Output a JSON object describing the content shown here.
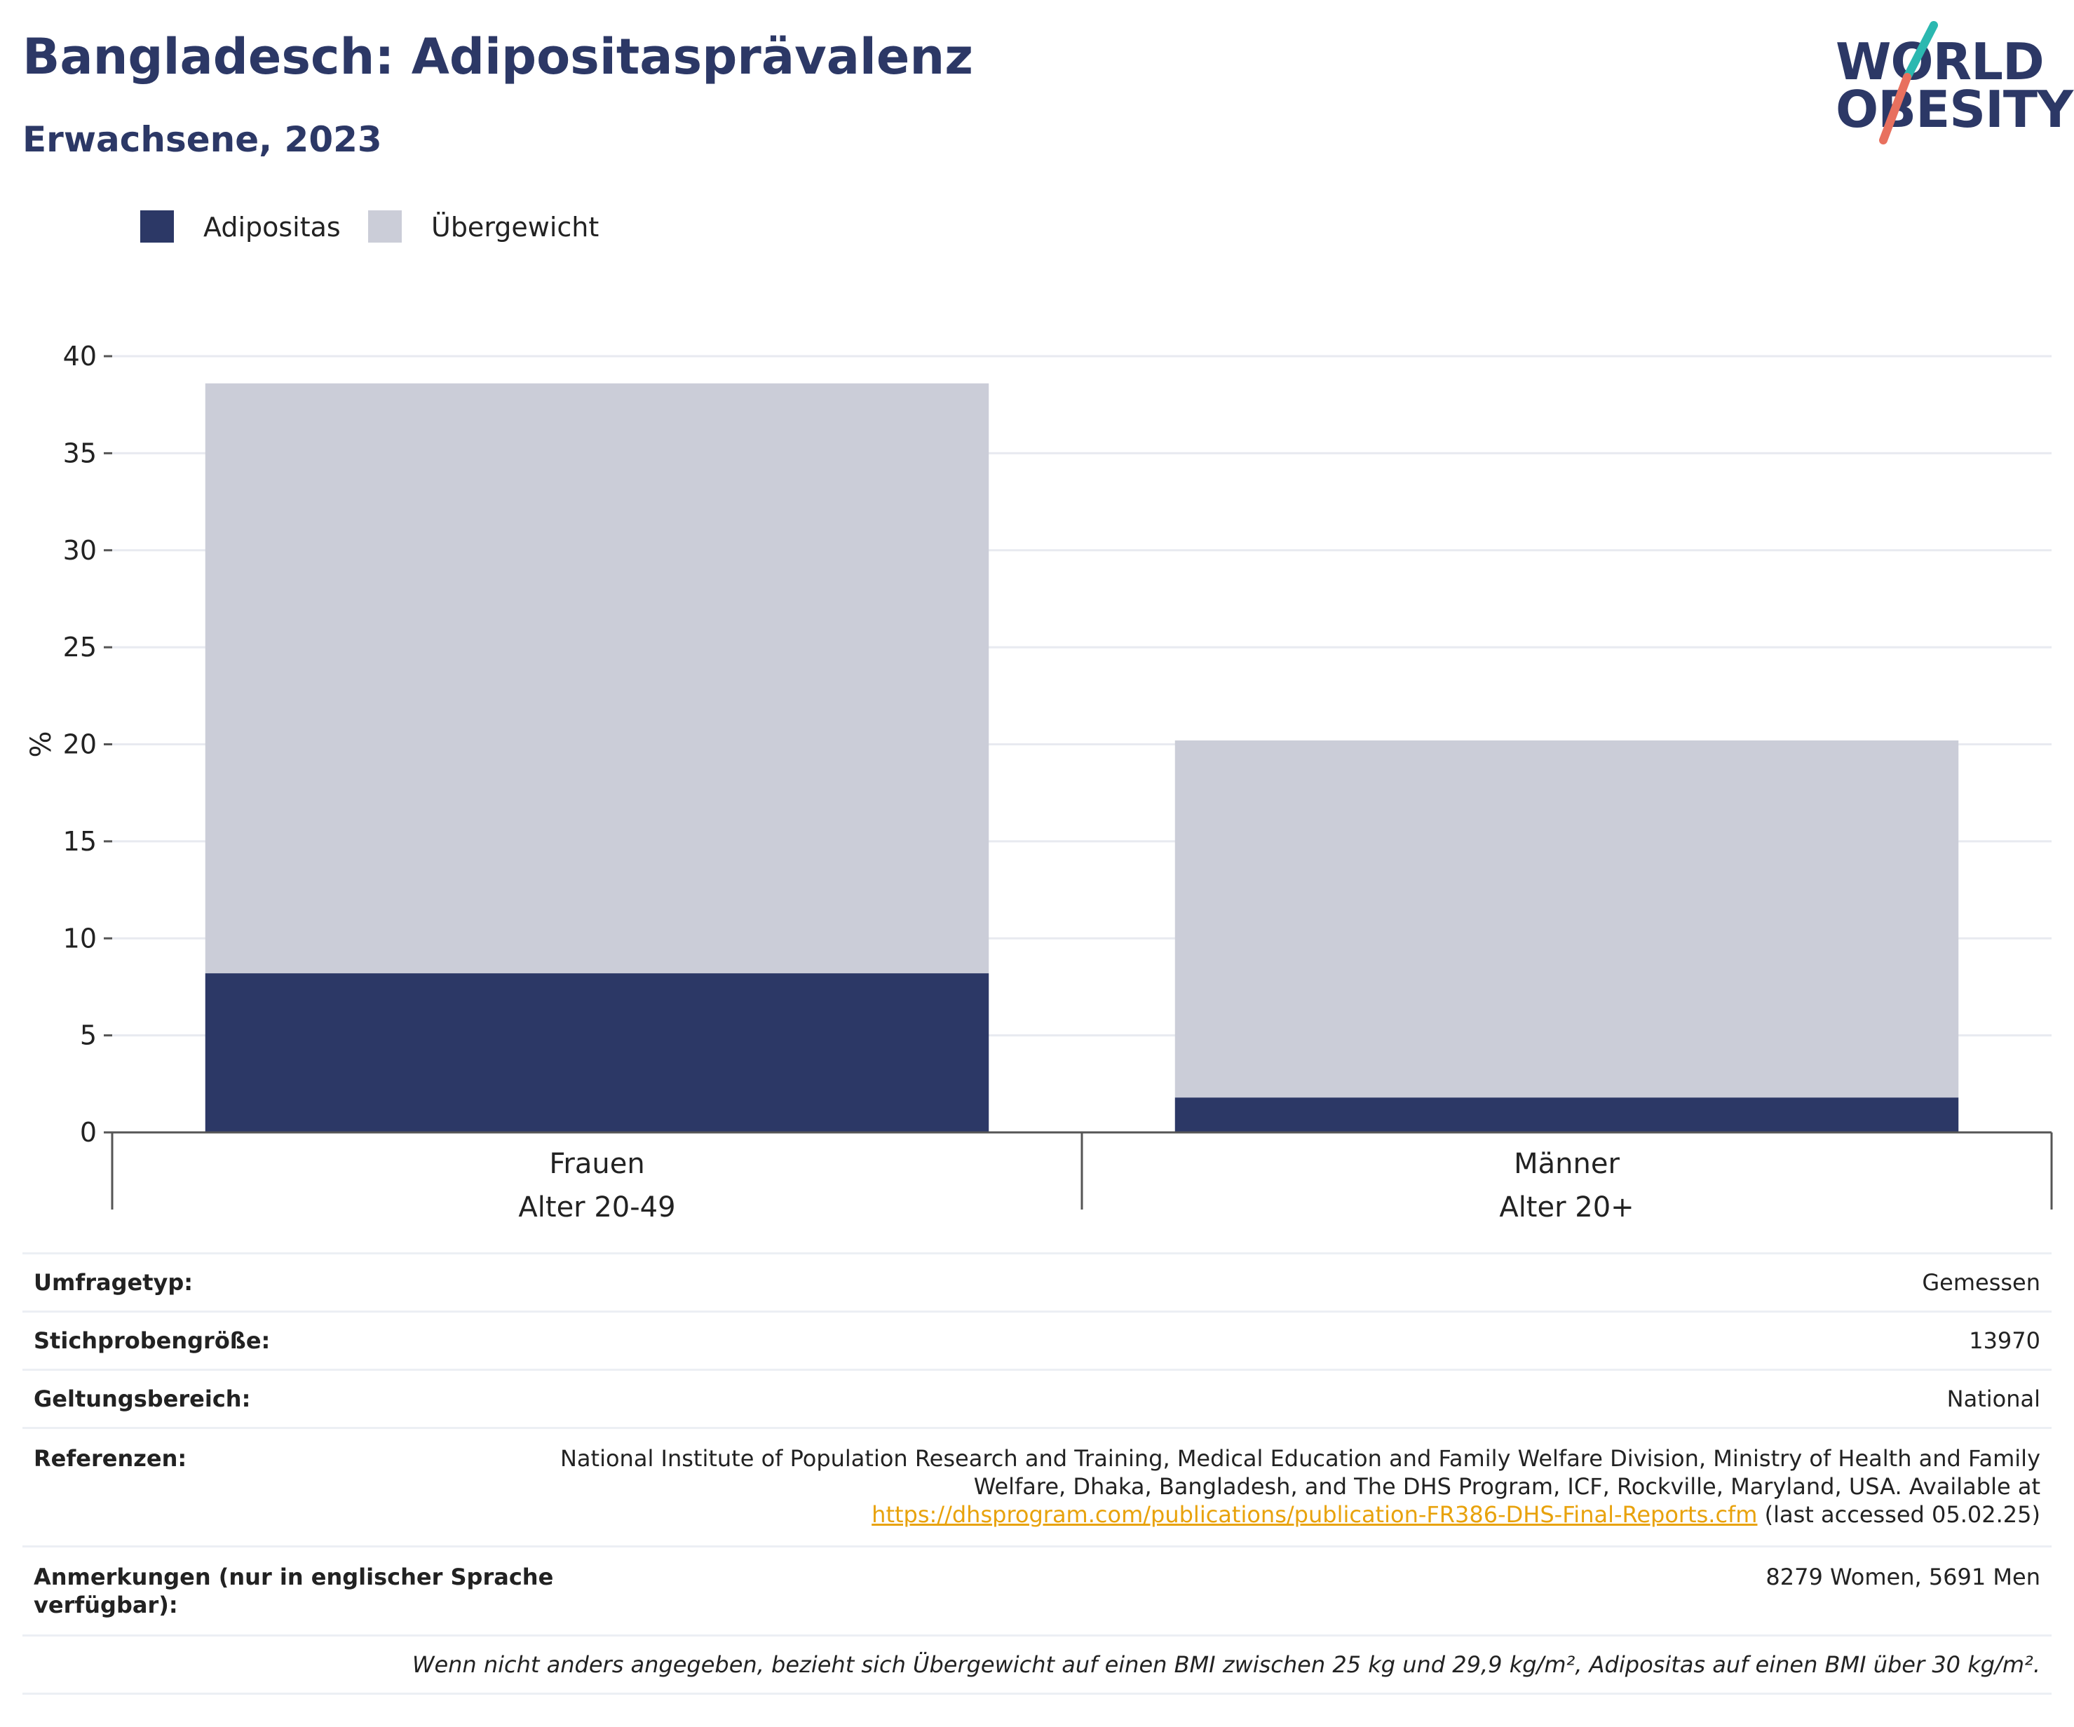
{
  "header": {
    "title": "Bangladesch: Adipositasprävalenz",
    "subtitle": "Erwachsene, 2023",
    "logo_line1": "WORLD",
    "logo_line2": "OBESITY"
  },
  "colors": {
    "obesity": "#2c3866",
    "overweight": "#cbcdd8",
    "grid": "#e8eaf0",
    "title": "#2c3866",
    "link": "#e8a20c",
    "logo_teal": "#2bb8b0",
    "logo_coral": "#e8705e"
  },
  "chart_data": {
    "type": "bar",
    "stacked": true,
    "categories": [
      [
        "Frauen",
        "Alter 20-49"
      ],
      [
        "Männer",
        "Alter 20+"
      ]
    ],
    "series": [
      {
        "name": "Adipositas",
        "values": [
          8.2,
          1.8
        ]
      },
      {
        "name": "Übergewicht",
        "values": [
          30.4,
          18.4
        ]
      }
    ],
    "ylabel": "%",
    "ylim": [
      0,
      40
    ],
    "yticks": [
      0,
      5,
      10,
      15,
      20,
      25,
      30,
      35,
      40
    ],
    "grid": true,
    "legend_position": "top-left"
  },
  "info": {
    "survey_type_label": "Umfragetyp:",
    "survey_type_value": "Gemessen",
    "sample_size_label": "Stichprobengröße:",
    "sample_size_value": "13970",
    "coverage_label": "Geltungsbereich:",
    "coverage_value": "National",
    "references_label": "Referenzen:",
    "references_line1": "National Institute of Population Research and Training, Medical Education and Family Welfare Division, Ministry of Health and Family",
    "references_line2": "Welfare, Dhaka, Bangladesh, and The DHS Program, ICF, Rockville, Maryland, USA. Available at",
    "references_link": "https://dhsprogram.com/publications/publication-FR386-DHS-Final-Reports.cfm",
    "references_suffix": " (last accessed 05.02.25)",
    "notes_label_line1": "Anmerkungen (nur in englischer Sprache",
    "notes_label_line2": "verfügbar):",
    "notes_value": "8279 Women, 5691 Men",
    "footnote": "Wenn nicht anders angegeben, bezieht sich Übergewicht auf einen BMI zwischen 25 kg und 29,9 kg/m², Adipositas auf einen BMI über 30 kg/m²."
  }
}
